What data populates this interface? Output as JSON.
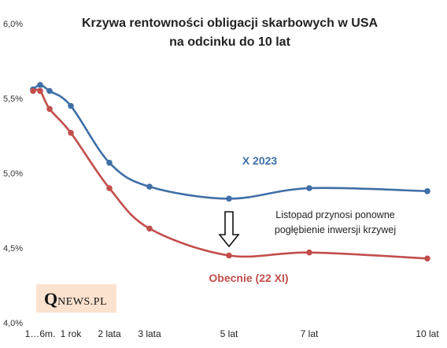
{
  "chart_data": {
    "type": "line",
    "title": [
      "Krzywa rentowności obligacji skarbowych w USA",
      "na odcinku do 10 lat"
    ],
    "x_tick_labels": [
      "1…6m.",
      "1 rok",
      "2 lata",
      "3 lata",
      "5 lat",
      "7 lat",
      "10 lat"
    ],
    "x_tick_values": [
      0.25,
      1,
      2,
      3,
      5,
      7,
      10
    ],
    "y_tick_labels": [
      "4,0%",
      "4,5%",
      "5,0%",
      "5,5%",
      "6,0%"
    ],
    "y_tick_values": [
      4.0,
      4.5,
      5.0,
      5.5,
      6.0
    ],
    "ylim": [
      4.0,
      6.0
    ],
    "grid": false,
    "series": [
      {
        "name": "X 2023",
        "color": "#3f6fa6",
        "x": [
          0.083,
          0.25,
          0.5,
          1,
          2,
          3,
          5,
          7,
          10
        ],
        "y": [
          5.56,
          5.59,
          5.55,
          5.45,
          5.07,
          4.91,
          4.83,
          4.9,
          4.88
        ]
      },
      {
        "name": "Obecnie (22 XI)",
        "color": "#c24e4c",
        "x": [
          0.083,
          0.25,
          0.5,
          1,
          2,
          3,
          5,
          7,
          10
        ],
        "y": [
          5.55,
          5.55,
          5.43,
          5.27,
          4.9,
          4.63,
          4.45,
          4.47,
          4.43
        ]
      }
    ],
    "annotation": [
      "Listopad przynosi ponowne",
      "pogłębienie inwersji krzywej"
    ]
  },
  "logo": {
    "q": "Q",
    "rest": "NEWS.PL"
  }
}
